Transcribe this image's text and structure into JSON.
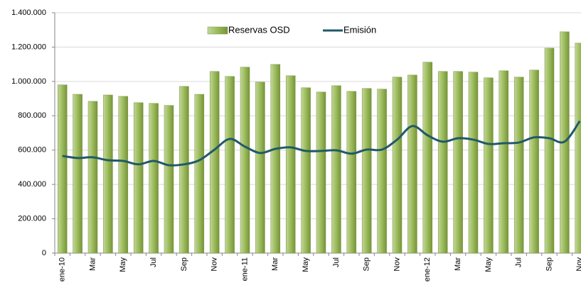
{
  "chart_data": {
    "type": "bar_line",
    "categories": [
      "ene-10",
      null,
      "Mar",
      null,
      "May",
      null,
      "Jul",
      null,
      "Sep",
      null,
      "Nov",
      null,
      "ene-11",
      null,
      "Mar",
      null,
      "May",
      null,
      "Jul",
      null,
      "Sep",
      null,
      "Nov",
      null,
      "ene-12",
      null,
      "Mar",
      null,
      "May",
      null,
      "Jul",
      null,
      "Sep",
      null,
      "Nov"
    ],
    "series": [
      {
        "name": "Reservas OSD",
        "type": "bar",
        "color": "#9bbb59",
        "values": [
          980000,
          925000,
          884000,
          921000,
          913000,
          876000,
          872000,
          860000,
          971000,
          925000,
          1058000,
          1029000,
          1083000,
          996000,
          1099000,
          1033000,
          963000,
          938000,
          975000,
          942000,
          959000,
          955000,
          1025000,
          1037000,
          1112000,
          1058000,
          1058000,
          1054000,
          1021000,
          1062000,
          1025000,
          1066000,
          1194000,
          1289000,
          1223000
        ]
      },
      {
        "name": "Emisión",
        "type": "line",
        "color": "#215968",
        "values": [
          566000,
          554000,
          558000,
          541000,
          537000,
          517000,
          537000,
          512000,
          517000,
          541000,
          603000,
          665000,
          620000,
          583000,
          607000,
          616000,
          595000,
          595000,
          599000,
          579000,
          603000,
          603000,
          661000,
          740000,
          686000,
          649000,
          669000,
          661000,
          636000,
          640000,
          644000,
          674000,
          669000,
          649000,
          769000
        ]
      }
    ],
    "ylim": [
      0,
      1400000
    ],
    "yticks": [
      0,
      {
        "value": 200000,
        "label": "200.000"
      },
      {
        "value": 400000,
        "label": "400.000"
      },
      {
        "value": 600000,
        "label": "600.000"
      },
      {
        "value": 800000,
        "label": "800.000"
      },
      {
        "value": 1000000,
        "label": "1.000.000"
      },
      {
        "value": 1200000,
        "label": "1.200.000"
      },
      {
        "value": 1400000,
        "label": "1.400.000"
      }
    ],
    "grid": true,
    "legend": "top"
  }
}
